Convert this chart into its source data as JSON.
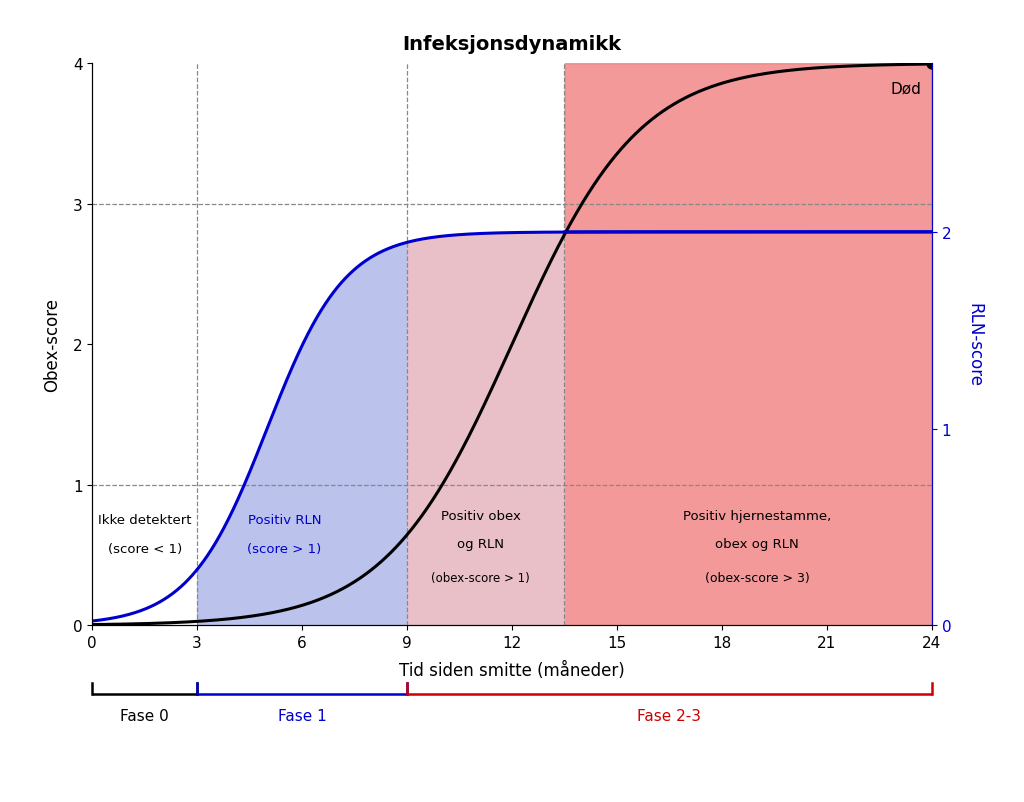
{
  "title": "Infeksjonsdynamikk",
  "xlabel": "Tid siden smitte (måneder)",
  "ylabel_left": "Obex-score",
  "ylabel_right": "RLN-score",
  "xlim": [
    0,
    24
  ],
  "ylim_left": [
    0,
    4
  ],
  "rln_max": 2.8,
  "obex_inflection": 12,
  "obex_steepness": 0.55,
  "rln_inflection": 5.0,
  "rln_steepness": 0.9,
  "phase0_end": 3,
  "phase1_end": 9,
  "phase2_start": 13.5,
  "death_x": 24,
  "death_y": 4.0,
  "blue_fill_color": "#b0b8e8",
  "pink_fill_color": "#f5c0c0",
  "red_fill_color": "#f08080",
  "rln_line_color": "#0000cc",
  "obex_line_color": "#000000",
  "phase0_color": "#000000",
  "phase1_color": "#0000cc",
  "phase2_color": "#cc0000",
  "grid_color": "#888888",
  "background_color": "#ffffff",
  "text_blue": "#0000cc",
  "text_black": "#000000",
  "xticks": [
    0,
    3,
    6,
    9,
    12,
    15,
    18,
    21,
    24
  ],
  "yticks_left": [
    0,
    1,
    2,
    3,
    4
  ],
  "yticks_right": [
    0,
    1,
    2
  ]
}
